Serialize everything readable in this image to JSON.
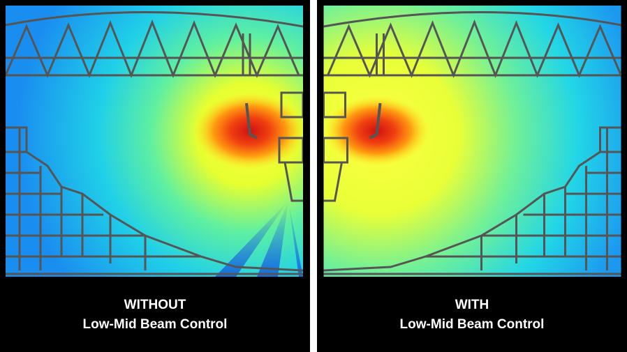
{
  "panels": [
    {
      "title": "WITHOUT",
      "subtitle": "Low-Mid Beam Control"
    },
    {
      "title": "WITH",
      "subtitle": "Low-Mid Beam Control"
    }
  ]
}
